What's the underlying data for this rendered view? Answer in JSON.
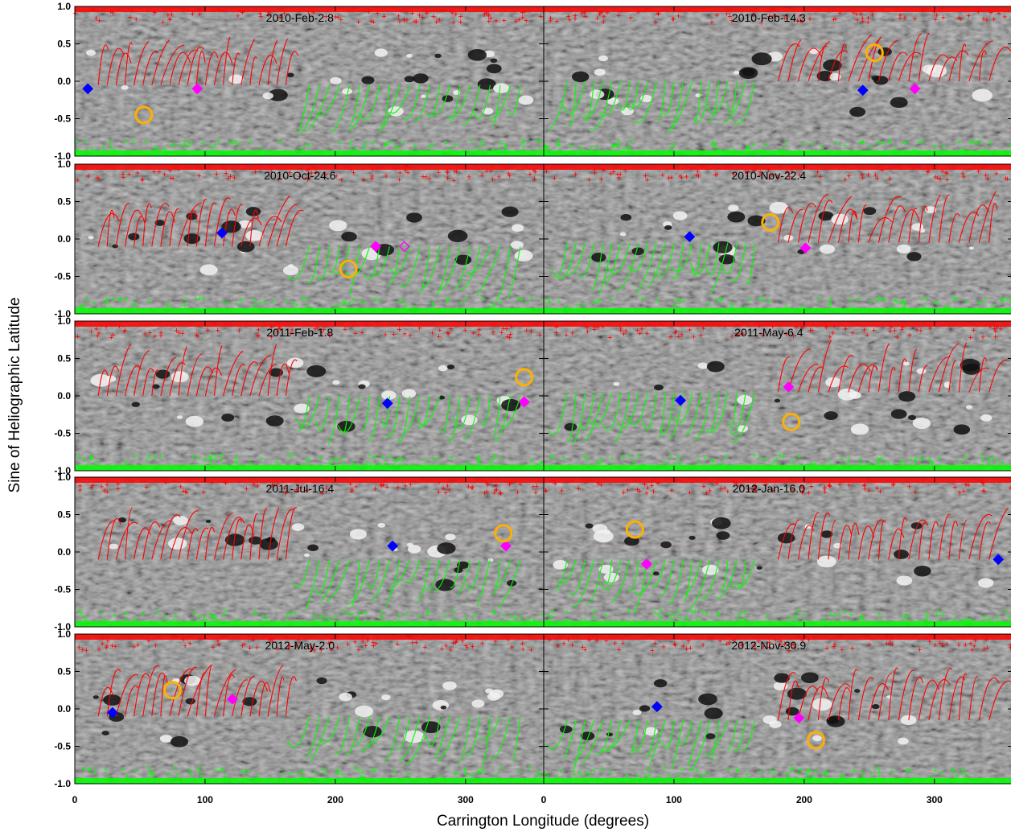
{
  "figure": {
    "ylabel": "Sine of Heliographic Latitude",
    "xlabel": "Carrington Longitude (degrees)",
    "x_ticks": [
      0,
      100,
      200,
      300
    ],
    "y_ticks": [
      "1.0",
      "0.5",
      "0.0",
      "-0.5",
      "-1.0"
    ],
    "colors": {
      "positive_field_lines": "#ff0000",
      "negative_field_lines": "#00ff00",
      "blue_marker": "#0000ff",
      "magenta_marker": "#ff00ff",
      "circle_marker": "#ffb000"
    }
  },
  "chart_data": [
    {
      "type": "scatter",
      "date": "2010-Feb-2.8",
      "xlim": [
        0,
        360
      ],
      "ylim": [
        -1,
        1
      ],
      "blue_diamond": [
        10,
        -0.1
      ],
      "magenta_diamond": [
        94,
        -0.1
      ],
      "circle": [
        53,
        -0.45
      ],
      "neutral_line": -0.05
    },
    {
      "type": "scatter",
      "date": "2010-Feb-14.3",
      "xlim": [
        0,
        360
      ],
      "ylim": [
        -1,
        1
      ],
      "blue_diamond": [
        245,
        -0.12
      ],
      "magenta_diamond": [
        285,
        -0.1
      ],
      "circle": [
        254,
        0.38
      ],
      "neutral_line": 0.0
    },
    {
      "type": "scatter",
      "date": "2010-Oct-24.6",
      "xlim": [
        0,
        360
      ],
      "ylim": [
        -1,
        1
      ],
      "blue_diamond": [
        113,
        0.08
      ],
      "magenta_diamond": [
        231,
        -0.1
      ],
      "magenta_open_diamond": [
        253,
        -0.1
      ],
      "circle": [
        210,
        -0.4
      ],
      "neutral_line": -0.1
    },
    {
      "type": "scatter",
      "date": "2010-Nov-22.4",
      "xlim": [
        0,
        360
      ],
      "ylim": [
        -1,
        1
      ],
      "blue_diamond": [
        112,
        0.03
      ],
      "magenta_diamond": [
        201,
        -0.12
      ],
      "circle": [
        174,
        0.22
      ],
      "neutral_line": -0.05
    },
    {
      "type": "scatter",
      "date": "2011-Feb-1.8",
      "xlim": [
        0,
        360
      ],
      "ylim": [
        -1,
        1
      ],
      "blue_diamond": [
        240,
        -0.1
      ],
      "magenta_diamond": [
        345,
        -0.08
      ],
      "circle": [
        345,
        0.25
      ],
      "neutral_line": 0.0
    },
    {
      "type": "scatter",
      "date": "2011-May-6.4",
      "xlim": [
        0,
        360
      ],
      "ylim": [
        -1,
        1
      ],
      "blue_diamond": [
        105,
        -0.06
      ],
      "magenta_diamond": [
        188,
        0.12
      ],
      "circle": [
        190,
        -0.35
      ],
      "neutral_line": 0.05
    },
    {
      "type": "scatter",
      "date": "2011-Jul-16.4",
      "xlim": [
        0,
        360
      ],
      "ylim": [
        -1,
        1
      ],
      "blue_diamond": [
        244,
        0.08
      ],
      "magenta_diamond": [
        331,
        0.08
      ],
      "circle": [
        329,
        0.25
      ],
      "neutral_line": -0.1
    },
    {
      "type": "scatter",
      "date": "2012-Jan-16.0",
      "xlim": [
        0,
        360
      ],
      "ylim": [
        -1,
        1
      ],
      "blue_diamond": [
        349,
        -0.1
      ],
      "magenta_diamond": [
        79,
        -0.16
      ],
      "circle": [
        70,
        0.3
      ],
      "neutral_line": -0.1
    },
    {
      "type": "scatter",
      "date": "2012-May-2.0",
      "xlim": [
        0,
        360
      ],
      "ylim": [
        -1,
        1
      ],
      "blue_diamond": [
        29,
        -0.05
      ],
      "magenta_diamond": [
        121,
        0.13
      ],
      "circle": [
        75,
        0.25
      ],
      "neutral_line": -0.1
    },
    {
      "type": "scatter",
      "date": "2012-Nov-30.9",
      "xlim": [
        0,
        360
      ],
      "ylim": [
        -1,
        1
      ],
      "blue_diamond": [
        87,
        0.03
      ],
      "magenta_diamond": [
        196,
        -0.12
      ],
      "circle": [
        209,
        -0.42
      ],
      "neutral_line": -0.15
    }
  ]
}
